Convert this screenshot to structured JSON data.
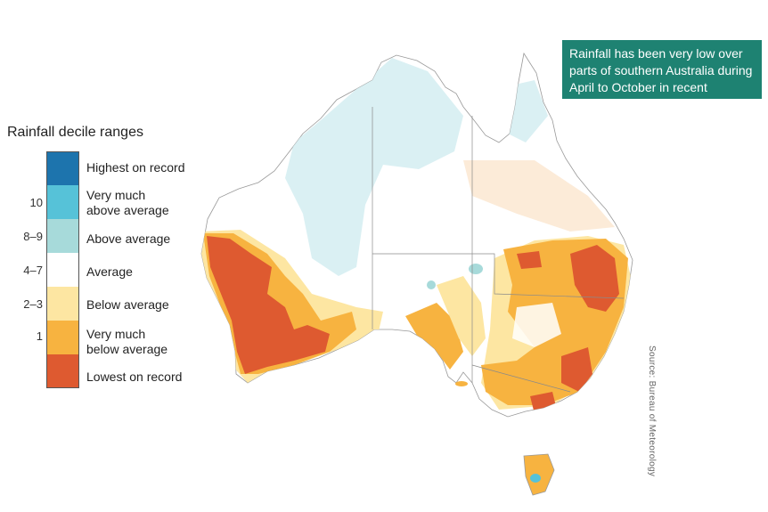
{
  "legend": {
    "title": "Rainfall decile ranges",
    "items": [
      {
        "decile": "",
        "label_line1": "Highest on record",
        "label_line2": "",
        "color": "#1d74ad"
      },
      {
        "decile": "10",
        "label_line1": "Very much",
        "label_line2": "above average",
        "color": "#56c2d8"
      },
      {
        "decile": "8–9",
        "label_line1": "Above average",
        "label_line2": "",
        "color": "#a7dada"
      },
      {
        "decile": "4–7",
        "label_line1": "Average",
        "label_line2": "",
        "color": "#ffffff"
      },
      {
        "decile": "2–3",
        "label_line1": "Below average",
        "label_line2": "",
        "color": "#fde6a2"
      },
      {
        "decile": "1",
        "label_line1": "Very much",
        "label_line2": "below average",
        "color": "#f7b340"
      },
      {
        "decile": "",
        "label_line1": "Lowest on record",
        "label_line2": "",
        "color": "#de5a30"
      }
    ]
  },
  "callout": {
    "line1": "Rainfall has been very low over",
    "line2": "parts of southern Australia during",
    "line3": "April to October in recent decades."
  },
  "source": "Source: Bureau of Meteorology",
  "colors": {
    "callout_bg": "#1e8272",
    "highest": "#1d74ad",
    "very_much_above": "#56c2d8",
    "above": "#a7dada",
    "average": "#ffffff",
    "below": "#fde6a2",
    "very_much_below": "#f7b340",
    "lowest": "#de5a30"
  }
}
